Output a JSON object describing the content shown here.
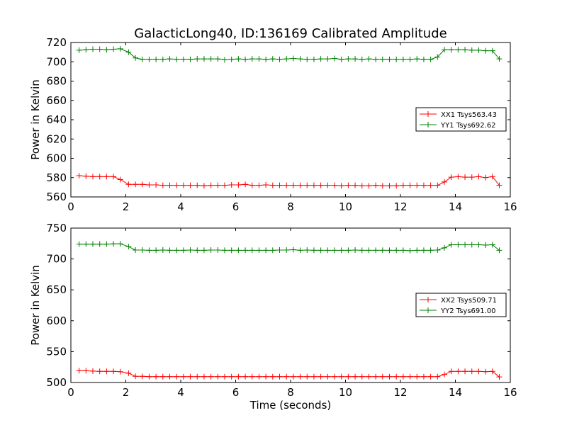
{
  "title": "GalacticLong40, ID:136169 Calibrated Amplitude",
  "chart_data": [
    {
      "type": "line",
      "title": "GalacticLong40, ID:136169 Calibrated Amplitude",
      "xlabel": "",
      "ylabel": "Power in Kelvin",
      "xlim": [
        0,
        16
      ],
      "ylim": [
        560,
        720
      ],
      "xticks": [
        0,
        2,
        4,
        6,
        8,
        10,
        12,
        14,
        16
      ],
      "yticks": [
        560,
        580,
        600,
        620,
        640,
        660,
        680,
        700,
        720
      ],
      "grid": false,
      "legend": "center-right",
      "x": [
        0.3,
        0.55,
        0.8,
        1.05,
        1.3,
        1.55,
        1.8,
        2.1,
        2.35,
        2.6,
        2.85,
        3.1,
        3.35,
        3.6,
        3.85,
        4.1,
        4.35,
        4.6,
        4.85,
        5.1,
        5.35,
        5.6,
        5.85,
        6.1,
        6.35,
        6.6,
        6.85,
        7.1,
        7.35,
        7.6,
        7.85,
        8.1,
        8.35,
        8.6,
        8.85,
        9.1,
        9.35,
        9.6,
        9.85,
        10.1,
        10.35,
        10.6,
        10.85,
        11.1,
        11.35,
        11.6,
        11.85,
        12.1,
        12.35,
        12.6,
        12.85,
        13.1,
        13.35,
        13.6,
        13.85,
        14.1,
        14.35,
        14.6,
        14.85,
        15.1,
        15.35,
        15.6
      ],
      "series": [
        {
          "name": "XX1 Tsys563.43",
          "color": "#ff0000",
          "values": [
            582,
            581.5,
            581,
            581,
            581,
            581,
            578,
            573,
            573,
            573,
            572.5,
            572.5,
            572,
            572,
            572,
            572,
            572,
            572,
            571.5,
            572,
            572,
            572,
            572.5,
            572.5,
            573,
            572,
            572,
            572.5,
            572,
            572,
            572,
            572,
            572,
            572,
            572,
            572,
            572,
            572,
            571.5,
            572,
            572,
            571.5,
            571.5,
            572,
            571.5,
            571.5,
            571.5,
            572,
            572,
            572,
            572,
            572,
            572,
            575.5,
            580.5,
            581,
            580.5,
            580.5,
            581,
            580,
            581,
            572
          ]
        },
        {
          "name": "YY1 Tsys692.62",
          "color": "#008000",
          "values": [
            712,
            712.5,
            713,
            713,
            712.5,
            713,
            713.5,
            710,
            704,
            702.5,
            702.5,
            702.5,
            702.5,
            703,
            702.5,
            702.5,
            702.5,
            703,
            703,
            703,
            703,
            702,
            702.5,
            703,
            702.5,
            703,
            703,
            702.5,
            703,
            702.5,
            703,
            703.5,
            703,
            702.5,
            702.5,
            703,
            703,
            703.5,
            702.5,
            703,
            703,
            702.5,
            703,
            702.5,
            702.5,
            702.5,
            702.5,
            702.5,
            702.5,
            703,
            702.5,
            702.5,
            705,
            712.5,
            712.5,
            712.5,
            712.5,
            712,
            712,
            711.5,
            711.5,
            703
          ]
        }
      ]
    },
    {
      "type": "line",
      "title": "",
      "xlabel": "Time (seconds)",
      "ylabel": "Power in Kelvin",
      "xlim": [
        0,
        16
      ],
      "ylim": [
        500,
        750
      ],
      "xticks": [
        0,
        2,
        4,
        6,
        8,
        10,
        12,
        14,
        16
      ],
      "yticks": [
        500,
        550,
        600,
        650,
        700,
        750
      ],
      "grid": false,
      "legend": "center-right",
      "x": [
        0.3,
        0.55,
        0.8,
        1.05,
        1.3,
        1.55,
        1.8,
        2.1,
        2.35,
        2.6,
        2.85,
        3.1,
        3.35,
        3.6,
        3.85,
        4.1,
        4.35,
        4.6,
        4.85,
        5.1,
        5.35,
        5.6,
        5.85,
        6.1,
        6.35,
        6.6,
        6.85,
        7.1,
        7.35,
        7.6,
        7.85,
        8.1,
        8.35,
        8.6,
        8.85,
        9.1,
        9.35,
        9.6,
        9.85,
        10.1,
        10.35,
        10.6,
        10.85,
        11.1,
        11.35,
        11.6,
        11.85,
        12.1,
        12.35,
        12.6,
        12.85,
        13.1,
        13.35,
        13.6,
        13.85,
        14.1,
        14.35,
        14.6,
        14.85,
        15.1,
        15.35,
        15.6
      ],
      "series": [
        {
          "name": "XX2 Tsys509.71",
          "color": "#ff0000",
          "values": [
            519,
            519,
            518.5,
            518,
            518,
            518,
            517.5,
            515,
            510,
            510,
            509.5,
            509.5,
            509.5,
            509.5,
            509.5,
            509.5,
            509.5,
            509.5,
            509.5,
            509.5,
            509.5,
            509.5,
            509.5,
            509.5,
            509.5,
            509.5,
            509.5,
            509.5,
            509.5,
            509.5,
            509.5,
            509.5,
            509.5,
            509.5,
            509.5,
            509.5,
            509.5,
            509.5,
            509.5,
            509.5,
            509.5,
            509.5,
            509.5,
            509.5,
            509.5,
            509.5,
            509.5,
            509.5,
            509.5,
            509.5,
            509.5,
            509.5,
            509.5,
            513,
            518,
            518,
            518,
            518,
            518,
            517.5,
            518,
            509
          ]
        },
        {
          "name": "YY2 Tsys691.00",
          "color": "#008000",
          "values": [
            724,
            724,
            724,
            724,
            724,
            724.5,
            724.5,
            720,
            714.5,
            714.5,
            714,
            714,
            714.5,
            714,
            714,
            714,
            714.5,
            714,
            714,
            714.5,
            714.5,
            714,
            714,
            714,
            714,
            714,
            714,
            714,
            714,
            714.5,
            714.5,
            715,
            714,
            714.5,
            714,
            714,
            714,
            714,
            714,
            714,
            714.5,
            714,
            714,
            714,
            714,
            714,
            714,
            714,
            713.5,
            714,
            714,
            714,
            714.5,
            718,
            723,
            723,
            723,
            723,
            723,
            722.5,
            723,
            714
          ]
        }
      ]
    }
  ]
}
